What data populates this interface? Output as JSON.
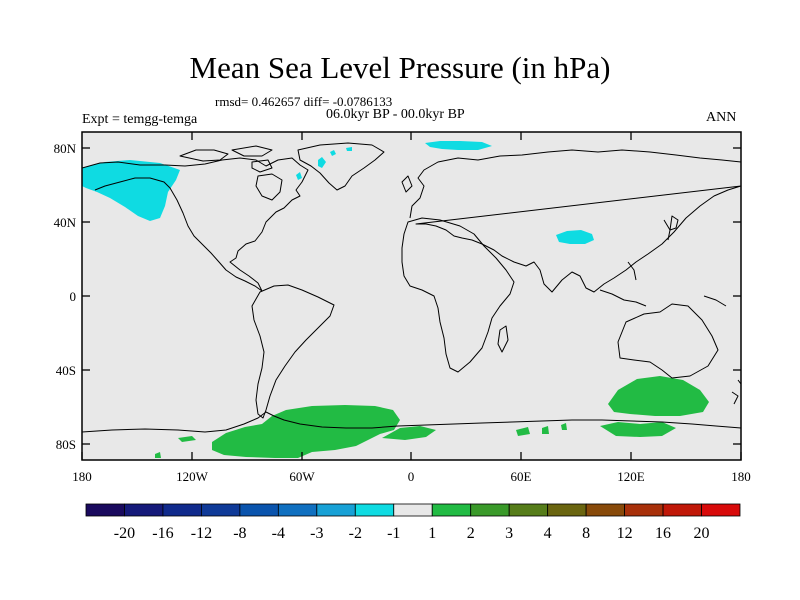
{
  "title": "Mean Sea Level Pressure (in hPa)",
  "stats": "rmsd= 0.462657 diff= -0.0786133",
  "period": "06.0kyr BP - 00.0kyr BP",
  "expt_label": "Expt = temgg-temga",
  "season": "ANN",
  "lat_ticks": [
    "80N",
    "40N",
    "0",
    "40S",
    "80S"
  ],
  "lon_ticks": [
    "180",
    "120W",
    "60W",
    "0",
    "60E",
    "120E",
    "180"
  ],
  "colorbar": {
    "labels": [
      "-20",
      "-16",
      "-12",
      "-8",
      "-4",
      "-3",
      "-2",
      "-1",
      "1",
      "2",
      "3",
      "4",
      "8",
      "12",
      "16",
      "20"
    ],
    "colors": [
      "#1a0a5e",
      "#151a7a",
      "#102a8c",
      "#0f3a98",
      "#0a54ad",
      "#1070c0",
      "#17a1d6",
      "#0fdbe2",
      "#e8e8e8",
      "#22bb44",
      "#3a9a2a",
      "#567d1a",
      "#6a6510",
      "#884a0a",
      "#a8300a",
      "#c01808",
      "#d80a0a"
    ]
  },
  "colors": {
    "land_background": "#e8e8e8",
    "negative_anomaly": "#0fdbe2",
    "positive_anomaly": "#22bb44",
    "coast": "#000000"
  }
}
